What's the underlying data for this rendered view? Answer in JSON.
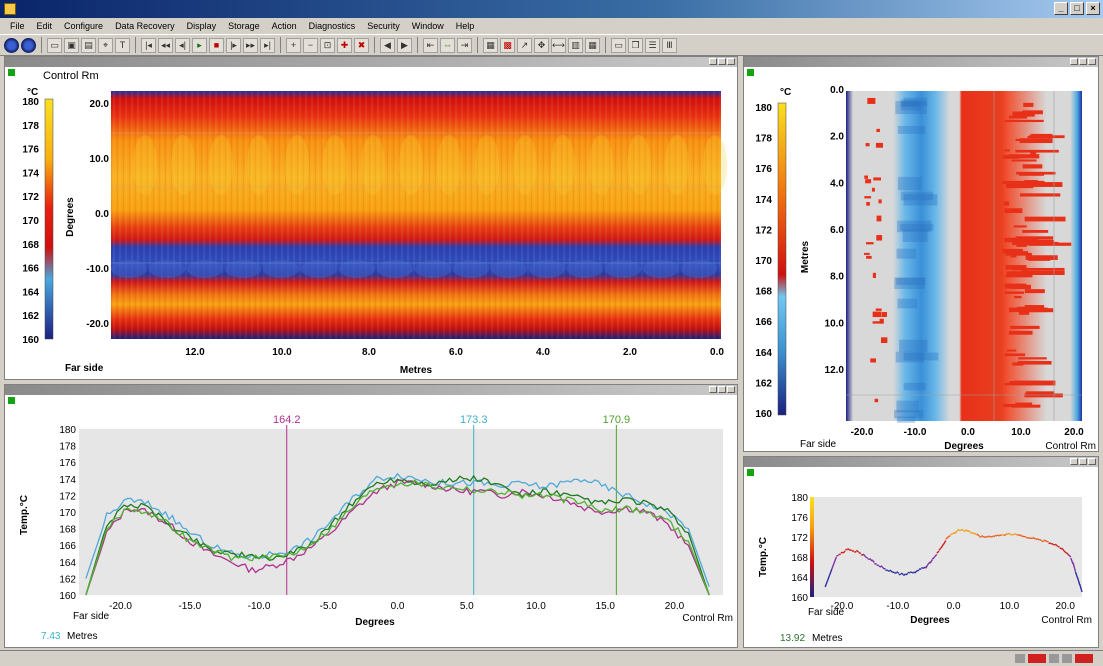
{
  "menubar": {
    "items": [
      "File",
      "Edit",
      "Configure",
      "Data Recovery",
      "Display",
      "Storage",
      "Action",
      "Diagnostics",
      "Security",
      "Window",
      "Help"
    ]
  },
  "colors": {
    "cold": "#2a3aa0",
    "mid_blue": "#4aa8e0",
    "red": "#e01818",
    "orange": "#f59a10",
    "yellow": "#f8e020",
    "panel_bg": "#e6e6e6"
  },
  "heatmap_top": {
    "location_label": "Control Rm",
    "unit": "°C",
    "colorbar_ticks": [
      "180",
      "178",
      "176",
      "174",
      "172",
      "170",
      "168",
      "166",
      "164",
      "162",
      "160"
    ],
    "ylabel": "Degrees",
    "y_ticks": [
      "20.0",
      "10.0",
      "0.0",
      "-10.0",
      "-20.0"
    ],
    "x_ticks": [
      "12.0",
      "10.0",
      "8.0",
      "6.0",
      "4.0",
      "2.0",
      "0.0"
    ],
    "xlabel": "Metres",
    "far_side_label": "Far side"
  },
  "heatmap_right": {
    "unit": "°C",
    "colorbar_ticks": [
      "180",
      "178",
      "176",
      "174",
      "172",
      "170",
      "168",
      "166",
      "164",
      "162",
      "160"
    ],
    "ylabel": "Metres",
    "y_ticks": [
      "0.0",
      "2.0",
      "4.0",
      "6.0",
      "8.0",
      "10.0",
      "12.0"
    ],
    "x_ticks": [
      "-20.0",
      "-10.0",
      "0.0",
      "10.0",
      "20.0"
    ],
    "xlabel": "Degrees",
    "far_side_label": "Far side",
    "control_label": "Control Rm"
  },
  "profile_chart": {
    "cursor_labels": [
      {
        "text": "164.2",
        "color": "#b03090"
      },
      {
        "text": "173.3",
        "color": "#40b0c8"
      },
      {
        "text": "170.9",
        "color": "#50a030"
      }
    ],
    "ylabel": "Temp.°C",
    "xlabel": "Degrees",
    "far_side_label": "Far side",
    "control_label": "Control Rm",
    "metres_value": "7.43",
    "metres_label": "Metres"
  },
  "small_profile_chart": {
    "ylabel": "Temp.°C",
    "xlabel": "Degrees",
    "far_side_label": "Far side",
    "control_label": "Control Rm",
    "metres_value": "13.92",
    "metres_label": "Metres"
  },
  "chart_data": [
    {
      "type": "heatmap",
      "title": "",
      "xlabel": "Metres",
      "ylabel": "Degrees",
      "x_range": [
        13.5,
        0.0
      ],
      "y_range": [
        22.5,
        -22.5
      ],
      "colorbar_range": [
        160,
        180
      ],
      "colorbar_label": "°C"
    },
    {
      "type": "heatmap",
      "title": "",
      "xlabel": "Degrees",
      "ylabel": "Metres",
      "x_range": [
        -22.5,
        22.5
      ],
      "y_range": [
        0.0,
        13.5
      ],
      "colorbar_range": [
        160,
        180
      ],
      "colorbar_label": "°C"
    },
    {
      "type": "line",
      "title": "",
      "xlabel": "Degrees",
      "ylabel": "Temp.°C",
      "xlim": [
        -23,
        23.5
      ],
      "ylim": [
        160,
        180
      ],
      "x_ticks": [
        -20,
        -15,
        -10,
        -5,
        0,
        5,
        10,
        15,
        20
      ],
      "y_ticks": [
        160,
        162,
        164,
        166,
        168,
        170,
        172,
        174,
        176,
        178,
        180
      ],
      "cursors": [
        {
          "x": -8.0,
          "value": "164.2",
          "color": "#b03090"
        },
        {
          "x": 5.5,
          "value": "173.3",
          "color": "#40b0c8"
        },
        {
          "x": 15.8,
          "value": "170.9",
          "color": "#50a030"
        }
      ],
      "x": [
        -22.5,
        -21,
        -19.5,
        -18,
        -16.5,
        -15,
        -13.5,
        -12,
        -10.5,
        -9,
        -7.5,
        -6,
        -4.5,
        -3,
        -1.5,
        0,
        1.5,
        3,
        4.5,
        6,
        7.5,
        9,
        10.5,
        12,
        13.5,
        15,
        16.5,
        18,
        19.5,
        21,
        22.5
      ],
      "series": [
        {
          "color": "#b03090",
          "values": [
            160,
            167.5,
            170.5,
            170,
            168.5,
            166.5,
            165,
            164,
            163,
            163.5,
            164.5,
            166,
            168,
            170.5,
            172.5,
            173.5,
            173.5,
            173,
            172.5,
            172.5,
            172,
            172.5,
            172,
            171.5,
            170.5,
            170,
            170.5,
            170,
            168.5,
            166,
            160
          ]
        },
        {
          "color": "#50a8d8",
          "values": [
            162,
            169.5,
            171.5,
            171,
            169.5,
            167.5,
            166,
            165,
            164.5,
            165,
            165.5,
            167,
            169.5,
            172,
            174,
            174.5,
            174,
            173.5,
            173.5,
            173.5,
            173,
            173.5,
            173,
            173.5,
            174,
            173,
            172,
            171,
            170,
            168,
            161
          ]
        },
        {
          "color": "#207a20",
          "values": [
            160,
            168.5,
            171,
            170.5,
            168.5,
            167,
            165.5,
            165,
            164.5,
            164.5,
            165,
            166.5,
            169,
            171.5,
            173.5,
            174,
            173.5,
            173.5,
            174,
            174,
            173,
            172,
            172.5,
            172,
            171.5,
            171,
            171.5,
            171,
            170,
            167.5,
            160
          ]
        },
        {
          "color": "#50b030",
          "values": [
            160,
            168,
            170.5,
            170,
            168.5,
            166.5,
            165.5,
            164.5,
            164.5,
            164.5,
            165,
            166.5,
            168.5,
            171,
            173,
            173.5,
            173.5,
            173,
            173,
            172.5,
            172.5,
            172,
            172,
            171.5,
            171,
            170,
            170.5,
            170,
            169,
            166.5,
            160
          ]
        }
      ]
    },
    {
      "type": "line",
      "title": "",
      "xlabel": "Degrees",
      "ylabel": "Temp.°C",
      "xlim": [
        -25,
        23
      ],
      "ylim": [
        160,
        180
      ],
      "x_ticks": [
        -20,
        -10,
        0,
        10,
        20
      ],
      "y_ticks": [
        160,
        164,
        168,
        172,
        176,
        180
      ],
      "x": [
        -23,
        -21,
        -19,
        -17,
        -15,
        -13,
        -11,
        -9,
        -7,
        -5,
        -3,
        -1,
        1,
        3,
        5,
        7,
        9,
        11,
        13,
        15,
        17,
        19,
        21,
        23
      ],
      "series": [
        {
          "values": [
            162,
            168,
            169.5,
            169,
            167.5,
            166,
            165,
            164.5,
            165,
            166,
            168.5,
            172,
            173.5,
            173,
            172,
            172,
            172.5,
            172.5,
            172,
            171.5,
            171,
            170,
            168,
            161
          ]
        }
      ]
    }
  ]
}
